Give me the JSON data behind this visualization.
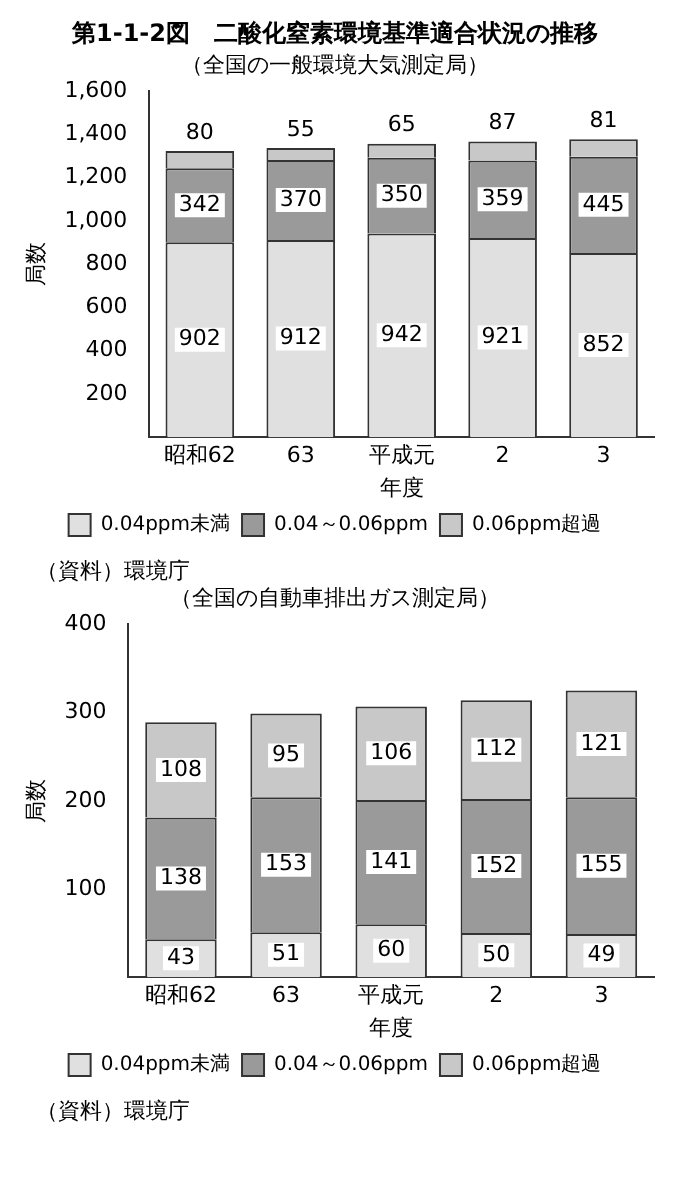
{
  "chart_data": [
    {
      "type": "bar",
      "title": "第1-1-2図　二酸化窒素環境基準適合状況の推移",
      "subtitle": "（全国の一般環境大気測定局）",
      "xlabel": "年度",
      "ylabel": "局数",
      "categories": [
        "昭和62",
        "63",
        "平成元",
        "2",
        "3"
      ],
      "stacked": true,
      "data_labels": true,
      "grid": false,
      "legend": "bottom",
      "ylim": [
        0,
        1600
      ],
      "yticks": [
        {
          "value": 0,
          "label": null
        },
        200,
        400,
        600,
        800,
        {
          "value": 1000,
          "label": "1,000"
        },
        {
          "value": 1200,
          "label": "1,200"
        },
        {
          "value": 1400,
          "label": "1,400"
        },
        {
          "value": 1600,
          "label": "1,600"
        }
      ],
      "series": [
        {
          "name": "0.04ppm未満",
          "color": "#e0e0e0",
          "values": [
            902,
            912,
            942,
            921,
            852
          ]
        },
        {
          "name": "0.04～0.06ppm",
          "color": "#9a9a9a",
          "values": [
            342,
            370,
            350,
            359,
            445
          ]
        },
        {
          "name": "0.06ppm超過",
          "color": "#c8c8c8",
          "values": [
            80,
            55,
            65,
            87,
            81
          ]
        }
      ],
      "annotations": [
        "（資料）環境庁"
      ]
    },
    {
      "type": "bar",
      "subtitle": "（全国の自動車排出ガス測定局）",
      "xlabel": "年度",
      "ylabel": "局数",
      "categories": [
        "昭和62",
        "63",
        "平成元",
        "2",
        "3"
      ],
      "stacked": true,
      "data_labels": true,
      "grid": false,
      "legend": "bottom",
      "ylim": [
        0,
        400
      ],
      "yticks": [
        {
          "value": 0,
          "label": null
        },
        100,
        200,
        300,
        400
      ],
      "series": [
        {
          "name": "0.04ppm未満",
          "color": "#e0e0e0",
          "values": [
            43,
            51,
            60,
            50,
            49
          ]
        },
        {
          "name": "0.04～0.06ppm",
          "color": "#9a9a9a",
          "values": [
            138,
            153,
            141,
            152,
            155
          ]
        },
        {
          "name": "0.06ppm超過",
          "color": "#c8c8c8",
          "values": [
            108,
            95,
            106,
            112,
            121
          ]
        }
      ],
      "annotations": [
        "（資料）環境庁"
      ]
    }
  ]
}
